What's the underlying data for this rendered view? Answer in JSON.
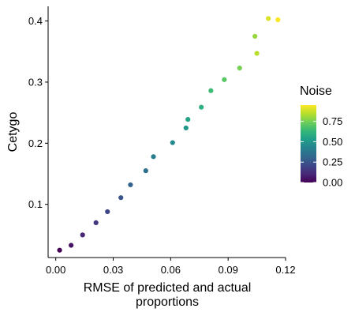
{
  "chart_data": {
    "type": "scatter",
    "xlabel": "RMSE of predicted and actual proportions",
    "xlabel_lines": [
      "RMSE of predicted and actual",
      "proportions"
    ],
    "ylabel": "Cetygo",
    "xlim": [
      -0.004,
      0.12
    ],
    "ylim": [
      0.013,
      0.424
    ],
    "x_ticks": [
      0.0,
      0.03,
      0.06,
      0.09,
      0.12
    ],
    "x_tick_labels": [
      "0.00",
      "0.03",
      "0.06",
      "0.09",
      "0.12"
    ],
    "y_ticks": [
      0.1,
      0.2,
      0.3,
      0.4
    ],
    "y_tick_labels": [
      "0.1",
      "0.2",
      "0.3",
      "0.4"
    ],
    "grid": false,
    "legend": {
      "title": "Noise",
      "position": "right",
      "ticks": [
        0.0,
        0.25,
        0.5,
        0.75
      ],
      "tick_labels": [
        "0.00",
        "0.25",
        "0.50",
        "0.75"
      ],
      "range": [
        0.0,
        0.95
      ]
    },
    "colormap": "viridis",
    "colormap_stops": [
      "#440154",
      "#482878",
      "#3e4989",
      "#31688e",
      "#26828e",
      "#1f9e89",
      "#35b779",
      "#6ece58",
      "#b5de2b",
      "#fde725"
    ],
    "points": [
      {
        "x": 0.002,
        "y": 0.025,
        "noise": 0.0
      },
      {
        "x": 0.008,
        "y": 0.033,
        "noise": 0.05
      },
      {
        "x": 0.014,
        "y": 0.05,
        "noise": 0.1
      },
      {
        "x": 0.021,
        "y": 0.07,
        "noise": 0.15
      },
      {
        "x": 0.027,
        "y": 0.088,
        "noise": 0.2
      },
      {
        "x": 0.034,
        "y": 0.111,
        "noise": 0.25
      },
      {
        "x": 0.039,
        "y": 0.132,
        "noise": 0.3
      },
      {
        "x": 0.047,
        "y": 0.155,
        "noise": 0.35
      },
      {
        "x": 0.051,
        "y": 0.178,
        "noise": 0.4
      },
      {
        "x": 0.061,
        "y": 0.201,
        "noise": 0.45
      },
      {
        "x": 0.068,
        "y": 0.225,
        "noise": 0.5
      },
      {
        "x": 0.069,
        "y": 0.239,
        "noise": 0.55
      },
      {
        "x": 0.076,
        "y": 0.259,
        "noise": 0.6
      },
      {
        "x": 0.081,
        "y": 0.286,
        "noise": 0.65
      },
      {
        "x": 0.088,
        "y": 0.304,
        "noise": 0.7
      },
      {
        "x": 0.096,
        "y": 0.323,
        "noise": 0.75
      },
      {
        "x": 0.104,
        "y": 0.375,
        "noise": 0.8
      },
      {
        "x": 0.105,
        "y": 0.347,
        "noise": 0.85
      },
      {
        "x": 0.111,
        "y": 0.404,
        "noise": 0.9
      },
      {
        "x": 0.116,
        "y": 0.402,
        "noise": 0.95
      }
    ]
  }
}
